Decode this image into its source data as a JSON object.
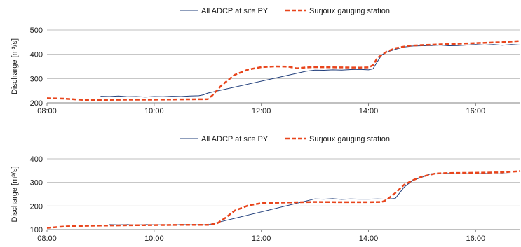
{
  "chart_data": [
    {
      "type": "line",
      "xlabel": "",
      "ylabel": "Discharge [m³/s]",
      "xlim": [
        "08:00",
        "16:50"
      ],
      "ylim": [
        200,
        500
      ],
      "yticks": [
        200,
        300,
        400,
        500
      ],
      "xticks": [
        "08:00",
        "10:00",
        "12:00",
        "14:00",
        "16:00"
      ],
      "grid": "horizontal",
      "legend_position": "top",
      "series": [
        {
          "name": "All ADCP at site PY",
          "color": "#1f3d7a",
          "style": "solid",
          "x": [
            "09:00",
            "09:10",
            "09:20",
            "09:30",
            "09:40",
            "09:50",
            "10:00",
            "10:10",
            "10:20",
            "10:30",
            "10:40",
            "10:50",
            "10:55",
            "11:00",
            "12:50",
            "13:00",
            "13:10",
            "13:20",
            "13:30",
            "13:40",
            "13:50",
            "14:00",
            "14:05",
            "14:10",
            "14:15",
            "14:20",
            "14:30",
            "14:40",
            "14:50",
            "15:00",
            "15:10",
            "15:20",
            "15:30",
            "15:40",
            "15:50",
            "16:00",
            "16:10",
            "16:20",
            "16:30",
            "16:40",
            "16:50"
          ],
          "y": [
            227,
            226,
            228,
            225,
            226,
            224,
            226,
            225,
            227,
            226,
            228,
            229,
            233,
            240,
            330,
            335,
            334,
            336,
            335,
            337,
            338,
            336,
            340,
            370,
            398,
            408,
            420,
            430,
            434,
            435,
            436,
            438,
            435,
            436,
            438,
            440,
            438,
            440,
            437,
            440,
            438
          ]
        },
        {
          "name": "Surjoux gauging station",
          "color": "#e8451c",
          "style": "dashed",
          "x": [
            "08:00",
            "08:20",
            "08:40",
            "09:00",
            "09:30",
            "10:00",
            "10:30",
            "11:00",
            "11:05",
            "11:15",
            "11:30",
            "11:45",
            "12:00",
            "12:15",
            "12:30",
            "12:40",
            "12:50",
            "13:00",
            "13:30",
            "13:50",
            "14:00",
            "14:05",
            "14:10",
            "14:20",
            "14:30",
            "14:45",
            "15:00",
            "15:30",
            "16:00",
            "16:30",
            "16:50"
          ],
          "y": [
            219,
            217,
            212,
            212,
            213,
            213,
            214,
            215,
            230,
            270,
            315,
            337,
            347,
            350,
            349,
            342,
            346,
            347,
            346,
            345,
            346,
            355,
            385,
            410,
            425,
            435,
            438,
            442,
            446,
            450,
            455
          ]
        }
      ]
    },
    {
      "type": "line",
      "xlabel": "",
      "ylabel": "Discharge [m³/s]",
      "xlim": [
        "08:00",
        "16:50"
      ],
      "ylim": [
        100,
        400
      ],
      "yticks": [
        100,
        200,
        300,
        400
      ],
      "xticks": [
        "08:00",
        "10:00",
        "12:00",
        "14:00",
        "16:00"
      ],
      "grid": "horizontal",
      "legend_position": "top",
      "series": [
        {
          "name": "All ADCP at site PY",
          "color": "#1f3d7a",
          "style": "solid",
          "x": [
            "09:10",
            "09:20",
            "09:30",
            "09:40",
            "09:50",
            "10:00",
            "10:10",
            "10:20",
            "10:30",
            "10:40",
            "10:50",
            "11:00",
            "13:00",
            "13:10",
            "13:20",
            "13:30",
            "13:40",
            "13:50",
            "14:00",
            "14:10",
            "14:20",
            "14:30",
            "14:40",
            "14:50",
            "15:00",
            "15:10",
            "15:20",
            "15:30",
            "15:40",
            "15:50",
            "16:00",
            "16:10",
            "16:20",
            "16:30",
            "16:40",
            "16:50"
          ],
          "y": [
            121,
            120,
            121,
            119,
            121,
            120,
            120,
            119,
            121,
            120,
            120,
            120,
            230,
            229,
            231,
            228,
            230,
            229,
            229,
            230,
            229,
            232,
            280,
            310,
            322,
            337,
            336,
            338,
            336,
            337,
            336,
            338,
            336,
            337,
            336,
            336
          ]
        },
        {
          "name": "Surjoux gauging station",
          "color": "#e8451c",
          "style": "dashed",
          "x": [
            "08:00",
            "08:15",
            "08:30",
            "09:00",
            "09:30",
            "10:00",
            "10:30",
            "11:00",
            "11:10",
            "11:20",
            "11:30",
            "11:45",
            "12:00",
            "12:30",
            "13:00",
            "13:30",
            "14:00",
            "14:15",
            "14:20",
            "14:30",
            "14:40",
            "14:50",
            "15:00",
            "15:15",
            "15:30",
            "16:00",
            "16:30",
            "16:50"
          ],
          "y": [
            107,
            112,
            115,
            117,
            118,
            119,
            120,
            120,
            125,
            150,
            180,
            202,
            212,
            215,
            217,
            216,
            216,
            217,
            225,
            255,
            290,
            310,
            325,
            338,
            340,
            341,
            343,
            348
          ]
        }
      ]
    }
  ]
}
